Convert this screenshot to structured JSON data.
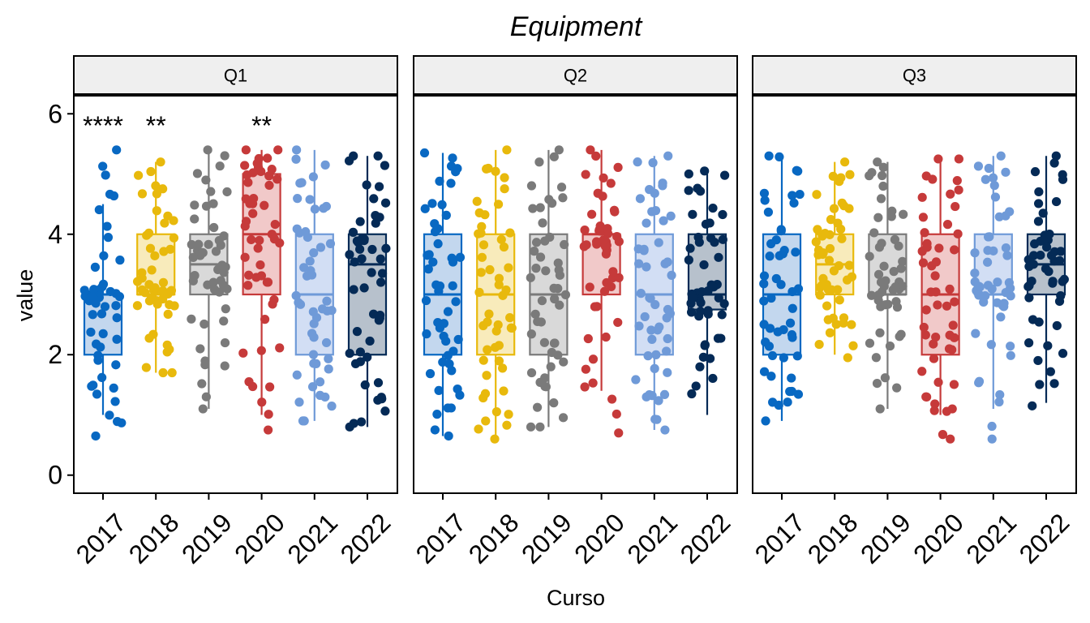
{
  "chart_data": {
    "type": "boxplot",
    "title": "Equipment",
    "xlabel": "Curso",
    "ylabel": "value",
    "ylim": [
      -0.3,
      6.3
    ],
    "yticks": [
      "0",
      "2",
      "4",
      "6"
    ],
    "categories": [
      "2017",
      "2018",
      "2019",
      "2020",
      "2021",
      "2022"
    ],
    "colors": [
      "#0868c2",
      "#e8b90c",
      "#7a7a7a",
      "#c63a3a",
      "#6f9ad8",
      "#042a56"
    ],
    "fills": [
      "#c3d7ee",
      "#f8ebbb",
      "#d9d9d9",
      "#f1c9c9",
      "#d2def4",
      "#b7c1cc"
    ],
    "points_per_box": 50,
    "panels": [
      {
        "name": "Q1",
        "boxes": [
          {
            "q1": 2,
            "median": 3,
            "q3": 3,
            "lower": 1,
            "upper": 4.5,
            "min": 0.65,
            "max": 5.4
          },
          {
            "q1": 3,
            "median": 3,
            "q3": 4,
            "lower": 1.7,
            "upper": 5.2,
            "min": 1.7,
            "max": 5.2
          },
          {
            "q1": 3,
            "median": 3.5,
            "q3": 4,
            "lower": 1.1,
            "upper": 5.4,
            "min": 1.1,
            "max": 5.4
          },
          {
            "q1": 3,
            "median": 4,
            "q3": 5,
            "lower": 1.0,
            "upper": 5.4,
            "min": 0.75,
            "max": 5.4
          },
          {
            "q1": 2,
            "median": 3,
            "q3": 4,
            "lower": 0.9,
            "upper": 5.4,
            "min": 0.9,
            "max": 5.4
          },
          {
            "q1": 2,
            "median": 3.5,
            "q3": 4,
            "lower": 0.8,
            "upper": 5.3,
            "min": 0.8,
            "max": 5.3
          }
        ],
        "annotations": [
          "****",
          "**",
          "",
          "**",
          "",
          ""
        ]
      },
      {
        "name": "Q2",
        "boxes": [
          {
            "q1": 2,
            "median": 3,
            "q3": 4,
            "lower": 0.65,
            "upper": 5.35,
            "min": 0.65,
            "max": 5.35
          },
          {
            "q1": 2,
            "median": 3,
            "q3": 4,
            "lower": 0.6,
            "upper": 5.4,
            "min": 0.6,
            "max": 5.4
          },
          {
            "q1": 2,
            "median": 3,
            "q3": 4,
            "lower": 0.8,
            "upper": 5.4,
            "min": 0.8,
            "max": 5.4
          },
          {
            "q1": 3,
            "median": 4,
            "q3": 4,
            "lower": 1.4,
            "upper": 5.4,
            "min": 0.7,
            "max": 5.4
          },
          {
            "q1": 2,
            "median": 3,
            "q3": 4,
            "lower": 0.75,
            "upper": 5.3,
            "min": 0.75,
            "max": 5.3
          },
          {
            "q1": 2.75,
            "median": 3,
            "q3": 4,
            "lower": 1.0,
            "upper": 5.0,
            "min": 1.35,
            "max": 5.05
          }
        ],
        "annotations": [
          "",
          "",
          "",
          "",
          "",
          ""
        ]
      },
      {
        "name": "Q3",
        "boxes": [
          {
            "q1": 2,
            "median": 3,
            "q3": 4,
            "lower": 0.9,
            "upper": 5.3,
            "min": 0.9,
            "max": 5.3
          },
          {
            "q1": 3,
            "median": 3.5,
            "q3": 4,
            "lower": 2.0,
            "upper": 5.2,
            "min": 1.95,
            "max": 5.2
          },
          {
            "q1": 3,
            "median": 3,
            "q3": 4,
            "lower": 1.1,
            "upper": 5.2,
            "min": 1.1,
            "max": 5.2
          },
          {
            "q1": 2,
            "median": 3,
            "q3": 4,
            "lower": 1.0,
            "upper": 5.25,
            "min": 0.6,
            "max": 5.25
          },
          {
            "q1": 3,
            "median": 3,
            "q3": 4,
            "lower": 1.1,
            "upper": 5.3,
            "min": 0.6,
            "max": 5.3
          },
          {
            "q1": 3,
            "median": 3.5,
            "q3": 4,
            "lower": 1.2,
            "upper": 5.3,
            "min": 1.15,
            "max": 5.3
          }
        ],
        "annotations": [
          "",
          "",
          "",
          "",
          "",
          ""
        ]
      }
    ]
  }
}
